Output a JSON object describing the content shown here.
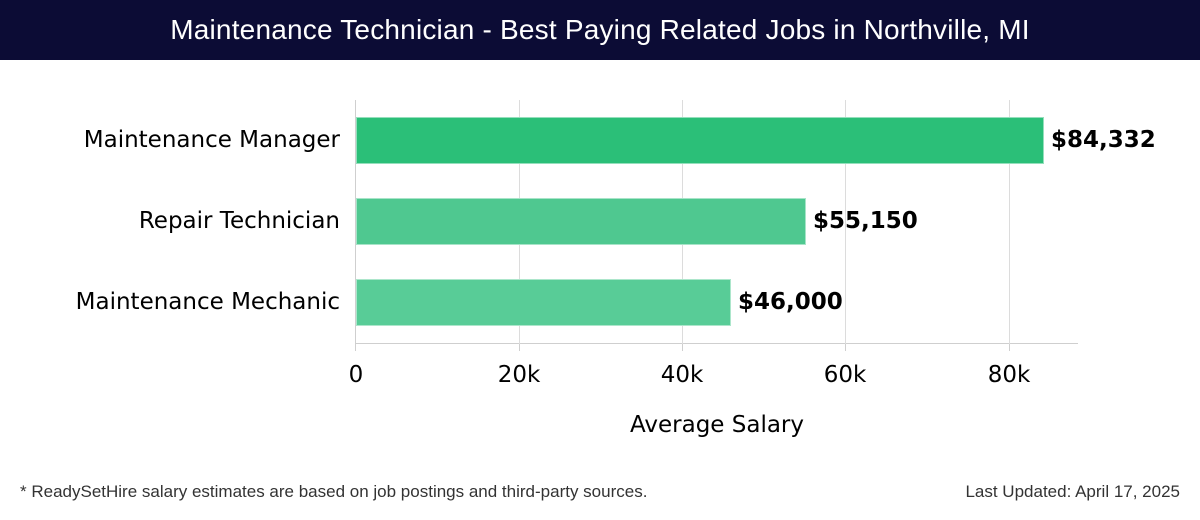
{
  "header": {
    "title": "Maintenance Technician - Best Paying Related Jobs in Northville, MI",
    "background_color": "#0c0c35"
  },
  "chart_data": {
    "type": "bar",
    "orientation": "horizontal",
    "title": "Maintenance Technician - Best Paying Related Jobs in Northville, MI",
    "categories": [
      "Maintenance Manager",
      "Repair Technician",
      "Maintenance Mechanic"
    ],
    "values": [
      84332,
      55150,
      46000
    ],
    "value_labels": [
      "$84,332",
      "$55,150",
      "$46,000"
    ],
    "bar_colors": [
      "#2bbf78",
      "#4fc890",
      "#58cc97"
    ],
    "xlabel": "Average Salary",
    "ylabel": "",
    "xlim": [
      0,
      88500
    ],
    "x_ticks": [
      0,
      20000,
      40000,
      60000,
      80000
    ],
    "x_tick_labels": [
      "0",
      "20k",
      "40k",
      "60k",
      "80k"
    ],
    "grid": {
      "x": true,
      "y": false
    },
    "legend": null
  },
  "footer": {
    "note": "* ReadySetHire salary estimates are based on job postings and third-party sources.",
    "last_updated": "Last Updated: April 17, 2025"
  }
}
